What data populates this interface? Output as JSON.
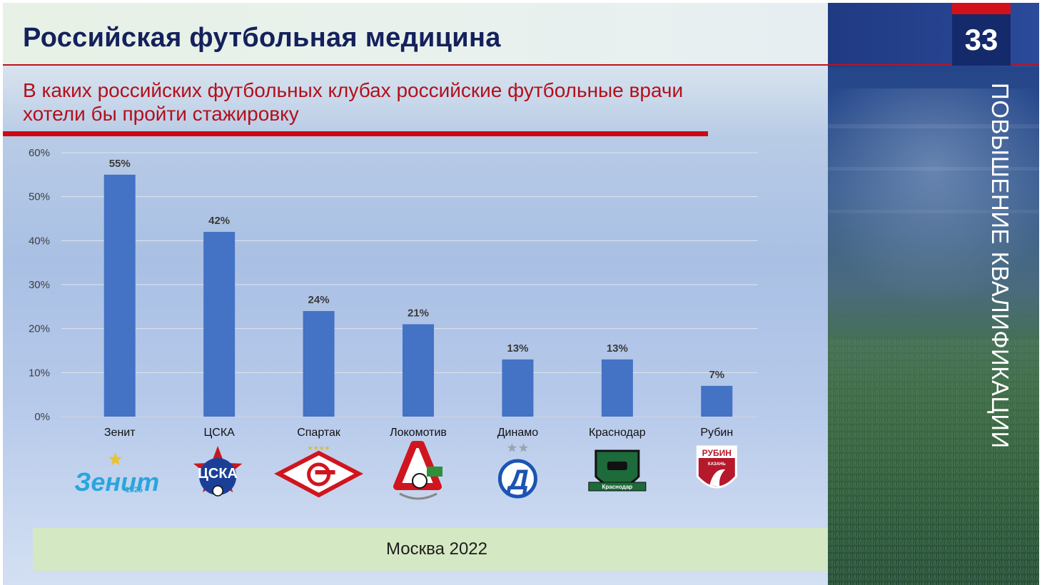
{
  "slide": {
    "title": "Российская футбольная медицина",
    "question": "В каких российских футбольных клубах российские футбольные врачи хотели бы пройти стажировку",
    "page_number": "33",
    "side_text": "ПОВЫШЕНИЕ КВАЛИФИКАЦИИ",
    "footer": "Москва 2022"
  },
  "colors": {
    "bar": "#4472c4",
    "accent_red": "#cc0a14",
    "title_navy": "#14215c"
  },
  "chart_data": {
    "type": "bar",
    "categories": [
      "Зенит",
      "ЦСКА",
      "Спартак",
      "Локомотив",
      "Динамо",
      "Краснодар",
      "Рубин"
    ],
    "values": [
      55,
      42,
      24,
      21,
      13,
      13,
      7
    ],
    "value_labels": [
      "55%",
      "42%",
      "24%",
      "21%",
      "13%",
      "13%",
      "7%"
    ],
    "y_ticks": [
      "0%",
      "10%",
      "20%",
      "30%",
      "40%",
      "50%",
      "60%"
    ],
    "ylim": [
      0,
      60
    ],
    "grid": true,
    "legend": "none"
  },
  "logos": [
    {
      "icon": "zenit-logo-icon",
      "text": "Зенит",
      "year": "1925"
    },
    {
      "icon": "cska-logo-icon",
      "text": "ЦСКА"
    },
    {
      "icon": "spartak-logo-icon"
    },
    {
      "icon": "lokomotiv-logo-icon"
    },
    {
      "icon": "dinamo-logo-icon"
    },
    {
      "icon": "krasnodar-logo-icon",
      "text": "Краснодар"
    },
    {
      "icon": "rubin-logo-icon",
      "text": "РУБИН",
      "subtext": "КАЗАНЬ"
    }
  ]
}
